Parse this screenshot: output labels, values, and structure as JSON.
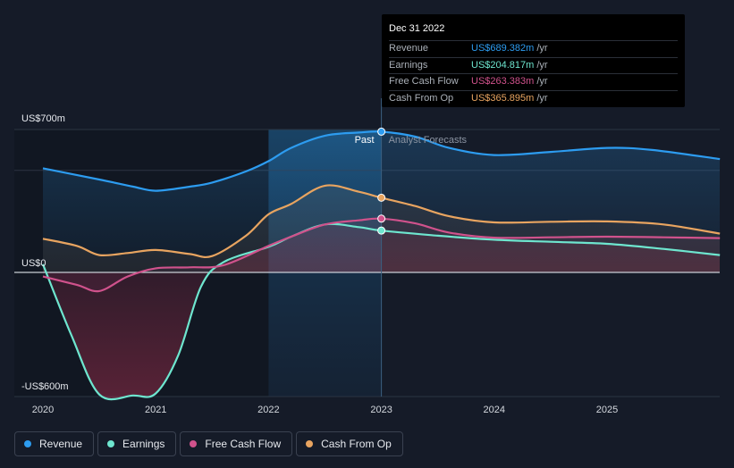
{
  "chart_data": {
    "type": "line",
    "y_labels": {
      "top": "US$700m",
      "zero": "US$0",
      "bottom": "-US$600m"
    },
    "ylim": [
      -600,
      700
    ],
    "xlim": [
      2020.0,
      2026.0
    ],
    "x_ticks": [
      "2020",
      "2021",
      "2022",
      "2023",
      "2024",
      "2025"
    ],
    "past_label": "Past",
    "forecast_label": "Analyst Forecasts",
    "divider_x": 2023.0,
    "highlight_range": [
      2022.0,
      2023.0
    ],
    "grid": "horizontal",
    "legend_position": "bottom-left",
    "series": [
      {
        "name": "Revenue",
        "color": "#2d9cf0",
        "points": [
          [
            2020.0,
            510
          ],
          [
            2020.5,
            455
          ],
          [
            2020.8,
            420
          ],
          [
            2021.0,
            400
          ],
          [
            2021.3,
            420
          ],
          [
            2021.5,
            440
          ],
          [
            2021.8,
            495
          ],
          [
            2022.0,
            545
          ],
          [
            2022.2,
            610
          ],
          [
            2022.5,
            670
          ],
          [
            2022.8,
            685
          ],
          [
            2023.0,
            689.382
          ],
          [
            2023.3,
            665
          ],
          [
            2023.6,
            610
          ],
          [
            2024.0,
            575
          ],
          [
            2024.5,
            590
          ],
          [
            2025.0,
            610
          ],
          [
            2025.4,
            600
          ],
          [
            2026.0,
            555
          ]
        ]
      },
      {
        "name": "Earnings",
        "color": "#6ee6cf",
        "points": [
          [
            2020.0,
            40
          ],
          [
            2020.25,
            -300
          ],
          [
            2020.5,
            -590
          ],
          [
            2020.8,
            -595
          ],
          [
            2021.0,
            -585
          ],
          [
            2021.2,
            -400
          ],
          [
            2021.4,
            -70
          ],
          [
            2021.6,
            50
          ],
          [
            2022.0,
            125
          ],
          [
            2022.2,
            175
          ],
          [
            2022.5,
            235
          ],
          [
            2022.8,
            222
          ],
          [
            2023.0,
            204.817
          ],
          [
            2023.5,
            180
          ],
          [
            2024.0,
            160
          ],
          [
            2024.5,
            150
          ],
          [
            2025.0,
            140
          ],
          [
            2025.5,
            115
          ],
          [
            2026.0,
            85
          ]
        ]
      },
      {
        "name": "Free Cash Flow",
        "color": "#d0528c",
        "points": [
          [
            2020.0,
            -20
          ],
          [
            2020.3,
            -60
          ],
          [
            2020.5,
            -90
          ],
          [
            2020.75,
            -20
          ],
          [
            2021.0,
            20
          ],
          [
            2021.3,
            25
          ],
          [
            2021.6,
            35
          ],
          [
            2022.0,
            130
          ],
          [
            2022.2,
            175
          ],
          [
            2022.5,
            235
          ],
          [
            2022.8,
            255
          ],
          [
            2023.0,
            263.383
          ],
          [
            2023.3,
            240
          ],
          [
            2023.6,
            195
          ],
          [
            2024.0,
            170
          ],
          [
            2024.5,
            172
          ],
          [
            2025.0,
            175
          ],
          [
            2025.5,
            172
          ],
          [
            2026.0,
            168
          ]
        ]
      },
      {
        "name": "Cash From Op",
        "color": "#e8a460",
        "points": [
          [
            2020.0,
            165
          ],
          [
            2020.3,
            130
          ],
          [
            2020.5,
            85
          ],
          [
            2020.75,
            95
          ],
          [
            2021.0,
            110
          ],
          [
            2021.3,
            90
          ],
          [
            2021.5,
            80
          ],
          [
            2021.8,
            180
          ],
          [
            2022.0,
            285
          ],
          [
            2022.2,
            335
          ],
          [
            2022.5,
            425
          ],
          [
            2022.8,
            395
          ],
          [
            2023.0,
            365.895
          ],
          [
            2023.3,
            325
          ],
          [
            2023.6,
            275
          ],
          [
            2024.0,
            245
          ],
          [
            2024.5,
            248
          ],
          [
            2025.0,
            250
          ],
          [
            2025.5,
            235
          ],
          [
            2026.0,
            190
          ]
        ]
      }
    ]
  },
  "tooltip": {
    "date": "Dec 31 2022",
    "unit": "/yr",
    "rows": [
      {
        "name": "Revenue",
        "value": "US$689.382m",
        "color": "#2d9cf0"
      },
      {
        "name": "Earnings",
        "value": "US$204.817m",
        "color": "#6ee6cf"
      },
      {
        "name": "Free Cash Flow",
        "value": "US$263.383m",
        "color": "#d0528c"
      },
      {
        "name": "Cash From Op",
        "value": "US$365.895m",
        "color": "#e8a460"
      }
    ]
  },
  "legend": [
    {
      "label": "Revenue",
      "color": "#2d9cf0"
    },
    {
      "label": "Earnings",
      "color": "#6ee6cf"
    },
    {
      "label": "Free Cash Flow",
      "color": "#d0528c"
    },
    {
      "label": "Cash From Op",
      "color": "#e8a460"
    }
  ]
}
